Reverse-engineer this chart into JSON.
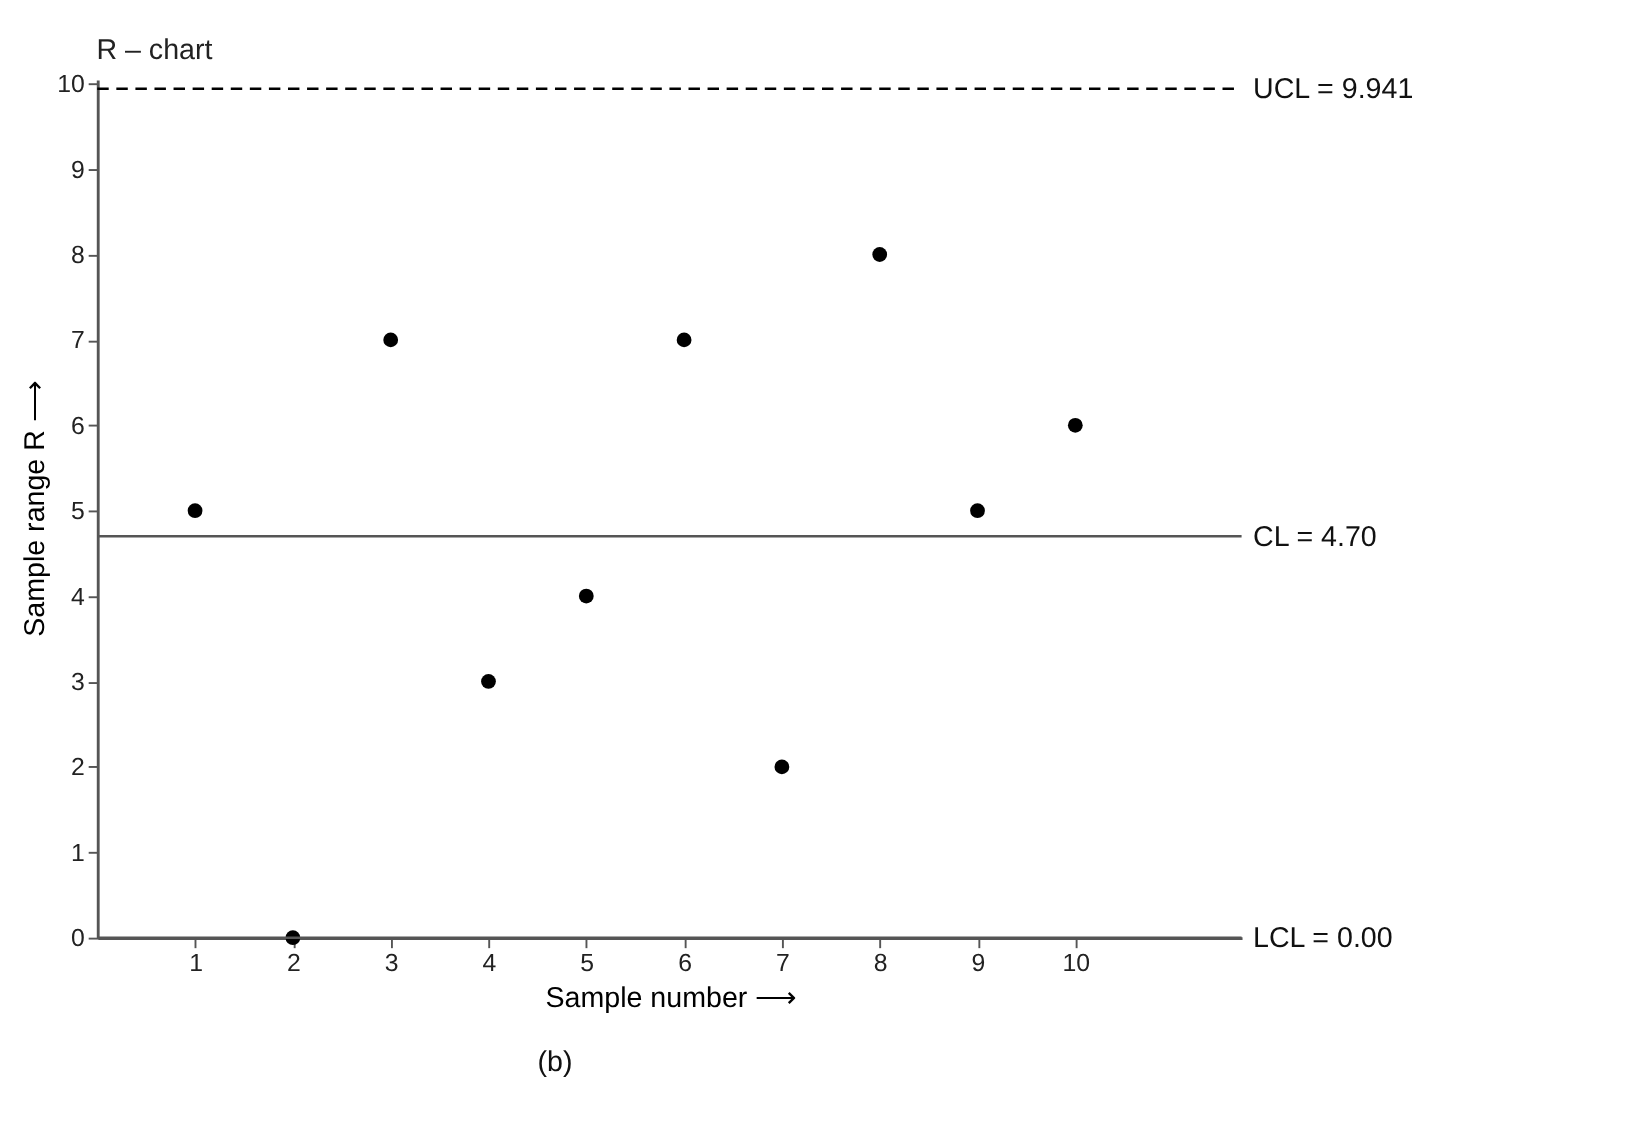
{
  "chart_data": {
    "type": "scatter",
    "title": "R – chart",
    "xlabel": "Sample number ⟶",
    "ylabel": "Sample range R ⟶",
    "x": [
      1,
      2,
      3,
      4,
      5,
      6,
      7,
      8,
      9,
      10
    ],
    "series": [
      {
        "color": "#000000",
        "values": [
          5,
          0,
          7,
          3,
          4,
          7,
          2,
          8,
          5,
          6
        ]
      }
    ],
    "xlim": [
      0,
      11.7
    ],
    "xticks": [
      1,
      2,
      3,
      4,
      5,
      6,
      7,
      8,
      9,
      10
    ],
    "ylim": [
      0,
      10.05
    ],
    "yticks": [
      0,
      1,
      2,
      3,
      4,
      5,
      6,
      7,
      8,
      9,
      10
    ],
    "ref_lines": [
      {
        "axis": "y",
        "value": 9.941,
        "label": "UCL = 9.941",
        "line_style": "dashed",
        "color": "#000000"
      },
      {
        "axis": "y",
        "value": 4.7,
        "label": "CL = 4.70",
        "line_style": "solid",
        "color": "#555555"
      },
      {
        "axis": "y",
        "value": 0.0,
        "label": "LCL = 0.00",
        "line_style": "solid",
        "color": "#555555"
      }
    ],
    "annotations": [
      "(b)"
    ],
    "marker": "circle",
    "grid": false
  }
}
